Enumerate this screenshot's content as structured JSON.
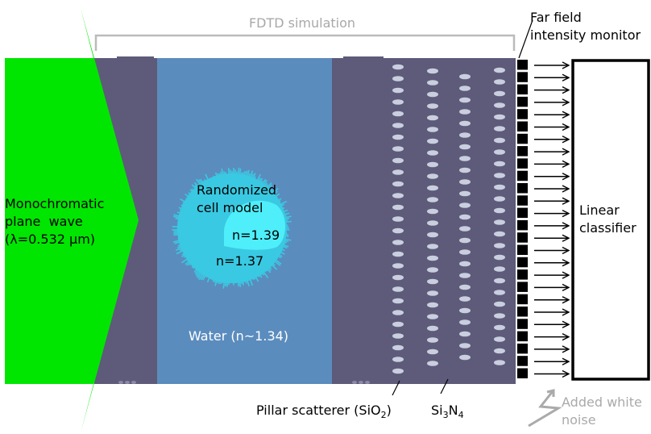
{
  "labels": {
    "fdtd_simulation": "FDTD simulation",
    "far_field_line1": "Far field",
    "far_field_line2": "intensity monitor",
    "source_line1": "Monochromatic",
    "source_line2": "plane  wave",
    "source_line3": "(λ=0.532 μm)",
    "cell_line1": "Randomized",
    "cell_line2": "cell model",
    "nucleus_index": "n=1.39",
    "cytoplasm_index": "n=1.37",
    "water": "Water (n~1.34)",
    "pillar_prefix": "Pillar scatterer (SiO",
    "pillar_sub": "2",
    "pillar_suffix": ")",
    "si3n4_a": "Si",
    "si3n4_sub1": "3",
    "si3n4_b": "N",
    "si3n4_sub2": "4",
    "classifier_line1": "Linear",
    "classifier_line2": "classifier",
    "noise_line1": "Added white",
    "noise_line2": "noise"
  },
  "colors": {
    "source_green": "#00e600",
    "slab": "#5e5a7a",
    "water": "#5b8cbe",
    "cell": "#3ac9e2",
    "nucleus": "#4eeefa",
    "pillar": "#c9cfdf",
    "bracket": "#bbbbbb",
    "noise": "#aaaaaa"
  },
  "icons": {
    "noise_bolt": "lightning-bolt-icon",
    "arrows": "right-arrow-icon"
  },
  "structure": {
    "pillar_columns": 4,
    "monitor_pixels": 26,
    "output_arrows": 26
  }
}
